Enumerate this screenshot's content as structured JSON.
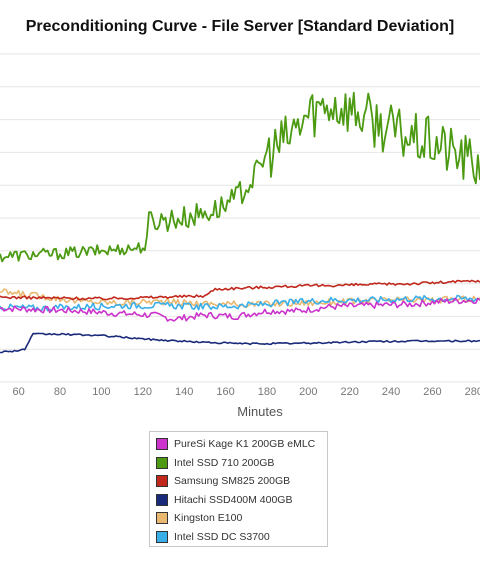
{
  "chart_data": {
    "type": "line",
    "title": "Preconditioning Curve - File Server [Standard Deviation]",
    "xlabel": "Minutes",
    "ylabel": "",
    "xlim": [
      51,
      283
    ],
    "ylim": [
      0,
      12
    ],
    "x_ticks": [
      "60",
      "80",
      "100",
      "120",
      "140",
      "160",
      "180",
      "200",
      "220",
      "240",
      "260",
      "280"
    ],
    "grid": true,
    "legend_position": "bottom-center",
    "series": [
      {
        "name": "PureSi Kage K1 200GB eMLC",
        "color": "#cc33cc",
        "points": [
          [
            51,
            2.7
          ],
          [
            70,
            2.65
          ],
          [
            90,
            2.6
          ],
          [
            110,
            2.5
          ],
          [
            125,
            2.45
          ],
          [
            135,
            2.3
          ],
          [
            150,
            2.45
          ],
          [
            165,
            2.4
          ],
          [
            180,
            2.6
          ],
          [
            195,
            2.6
          ],
          [
            210,
            2.75
          ],
          [
            230,
            2.8
          ],
          [
            250,
            2.85
          ],
          [
            265,
            2.95
          ],
          [
            283,
            3.0
          ]
        ]
      },
      {
        "name": "Intel SSD 710 200GB",
        "color": "#4b9a12",
        "points": [
          [
            51,
            4.6
          ],
          [
            80,
            4.7
          ],
          [
            100,
            4.8
          ],
          [
            122,
            4.95
          ],
          [
            123,
            5.9
          ],
          [
            140,
            6.0
          ],
          [
            155,
            6.3
          ],
          [
            163,
            6.6
          ],
          [
            172,
            7.3
          ],
          [
            180,
            8.3
          ],
          [
            190,
            8.9
          ],
          [
            200,
            9.8
          ],
          [
            210,
            10.2
          ],
          [
            220,
            10.0
          ],
          [
            235,
            9.4
          ],
          [
            250,
            8.9
          ],
          [
            262,
            8.7
          ],
          [
            272,
            8.3
          ],
          [
            283,
            7.9
          ]
        ]
      },
      {
        "name": "Samsung SM825 200GB",
        "color": "#c0281c",
        "points": [
          [
            51,
            3.1
          ],
          [
            100,
            3.05
          ],
          [
            125,
            3.1
          ],
          [
            150,
            3.15
          ],
          [
            155,
            3.4
          ],
          [
            190,
            3.5
          ],
          [
            220,
            3.55
          ],
          [
            250,
            3.6
          ],
          [
            283,
            3.7
          ]
        ]
      },
      {
        "name": "Hitachi SSD400M 400GB",
        "color": "#1a2a7a",
        "points": [
          [
            51,
            1.1
          ],
          [
            60,
            1.15
          ],
          [
            63,
            1.2
          ],
          [
            67,
            1.75
          ],
          [
            80,
            1.75
          ],
          [
            100,
            1.7
          ],
          [
            125,
            1.55
          ],
          [
            150,
            1.45
          ],
          [
            170,
            1.4
          ],
          [
            200,
            1.42
          ],
          [
            230,
            1.48
          ],
          [
            260,
            1.5
          ],
          [
            283,
            1.5
          ]
        ]
      },
      {
        "name": "Kingston E100",
        "color": "#e8b870",
        "points": [
          [
            51,
            3.3
          ],
          [
            70,
            3.15
          ],
          [
            90,
            2.95
          ],
          [
            110,
            2.9
          ],
          [
            125,
            2.95
          ],
          [
            140,
            2.9
          ],
          [
            160,
            2.85
          ],
          [
            180,
            2.85
          ],
          [
            200,
            2.9
          ],
          [
            220,
            2.95
          ],
          [
            240,
            3.0
          ],
          [
            260,
            3.0
          ],
          [
            283,
            3.05
          ]
        ]
      },
      {
        "name": "Intel SSD DC S3700",
        "color": "#3aaee8",
        "points": [
          [
            51,
            2.75
          ],
          [
            70,
            2.7
          ],
          [
            90,
            2.75
          ],
          [
            110,
            2.8
          ],
          [
            130,
            2.8
          ],
          [
            150,
            2.75
          ],
          [
            170,
            2.8
          ],
          [
            190,
            2.9
          ],
          [
            210,
            3.0
          ],
          [
            230,
            3.0
          ],
          [
            250,
            3.05
          ],
          [
            270,
            3.05
          ],
          [
            283,
            3.05
          ]
        ]
      }
    ]
  }
}
